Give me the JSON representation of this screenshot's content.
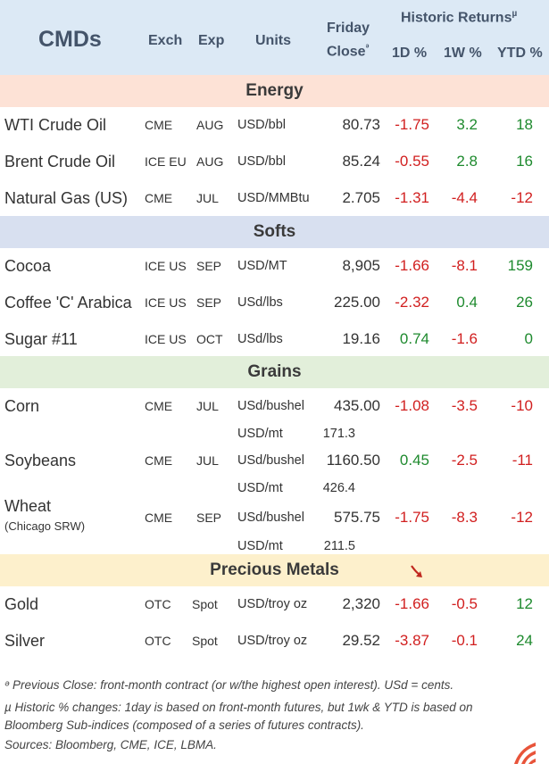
{
  "header": {
    "title": "CMDs",
    "exch": "Exch",
    "exp": "Exp",
    "units": "Units",
    "friday": "Friday",
    "close": "Close",
    "close_mark": "ᵊ",
    "historic": "Historic Returns",
    "historic_mark": "µ",
    "d1": "1D %",
    "w1": "1W %",
    "ytd": "YTD %"
  },
  "sections": {
    "energy": "Energy",
    "softs": "Softs",
    "grains": "Grains",
    "metals": "Precious Metals"
  },
  "colors": {
    "header_bg": "#dce9f5",
    "energy_bg": "#fde2d6",
    "softs_bg": "#d8e0f0",
    "grains_bg": "#e2efda",
    "metals_bg": "#fdf0cc",
    "negative": "#d11f1f",
    "positive": "#1e8a2e"
  },
  "energy": [
    {
      "name": "WTI Crude Oil",
      "exch": "CME",
      "exp": "AUG",
      "unit": "USD/bbl",
      "close": "80.73",
      "d1": "-1.75",
      "w1": "3.2",
      "ytd": "18"
    },
    {
      "name": "Brent Crude Oil",
      "exch": "ICE EU",
      "exp": "AUG",
      "unit": "USD/bbl",
      "close": "85.24",
      "d1": "-0.55",
      "w1": "2.8",
      "ytd": "16"
    },
    {
      "name": "Natural Gas (US)",
      "exch": "CME",
      "exp": "JUL",
      "unit": "USD/MMBtu",
      "close": "2.705",
      "d1": "-1.31",
      "w1": "-4.4",
      "ytd": "-12"
    }
  ],
  "softs": [
    {
      "name": "Cocoa",
      "exch": "ICE US",
      "exp": "SEP",
      "unit": "USD/MT",
      "close": "8,905",
      "d1": "-1.66",
      "w1": "-8.1",
      "ytd": "159"
    },
    {
      "name": "Coffee 'C' Arabica",
      "exch": "ICE US",
      "exp": "SEP",
      "unit": "USd/lbs",
      "close": "225.00",
      "d1": "-2.32",
      "w1": "0.4",
      "ytd": "26"
    },
    {
      "name": "Sugar #11",
      "exch": "ICE US",
      "exp": "OCT",
      "unit": "USd/lbs",
      "close": "19.16",
      "d1": "0.74",
      "w1": "-1.6",
      "ytd": "0"
    }
  ],
  "grains": [
    {
      "name": "Corn",
      "sub": "",
      "exch": "CME",
      "exp": "JUL",
      "unit": "USd/bushel",
      "close": "435.00",
      "d1": "-1.08",
      "w1": "-3.5",
      "ytd": "-10",
      "alt_unit": "USD/mt",
      "alt_close": "171.3"
    },
    {
      "name": "Soybeans",
      "sub": "",
      "exch": "CME",
      "exp": "JUL",
      "unit": "USd/bushel",
      "close": "1160.50",
      "d1": "0.45",
      "w1": "-2.5",
      "ytd": "-11",
      "alt_unit": "USD/mt",
      "alt_close": "426.4"
    },
    {
      "name": "Wheat",
      "sub": "(Chicago SRW)",
      "exch": "CME",
      "exp": "SEP",
      "unit": "USd/bushel",
      "close": "575.75",
      "d1": "-1.75",
      "w1": "-8.3",
      "ytd": "-12",
      "alt_unit": "USD/mt",
      "alt_close": "211.5"
    }
  ],
  "metals": [
    {
      "name": "Gold",
      "exch": "OTC",
      "exp": "Spot",
      "unit": "USD/troy oz",
      "close": "2,320",
      "d1": "-1.66",
      "w1": "-0.5",
      "ytd": "12"
    },
    {
      "name": "Silver",
      "exch": "OTC",
      "exp": "Spot",
      "unit": "USD/troy oz",
      "close": "29.52",
      "d1": "-3.87",
      "w1": "-0.1",
      "ytd": "24"
    }
  ],
  "footnotes": {
    "line1": "ᵊ Previous Close: front-month contract (or w/the highest open interest). USd = cents.",
    "line2": "µ Historic % changes: 1day is based on front-month futures, but 1wk & YTD is based on",
    "line3": "Bloomberg Sub-indices (composed of a series of futures contracts).",
    "sources": "Sources: Bloomberg, CME, ICE, LBMA."
  },
  "icons": {
    "pointer": "arrow-down-right-icon",
    "logo": "brand-logo-icon"
  }
}
